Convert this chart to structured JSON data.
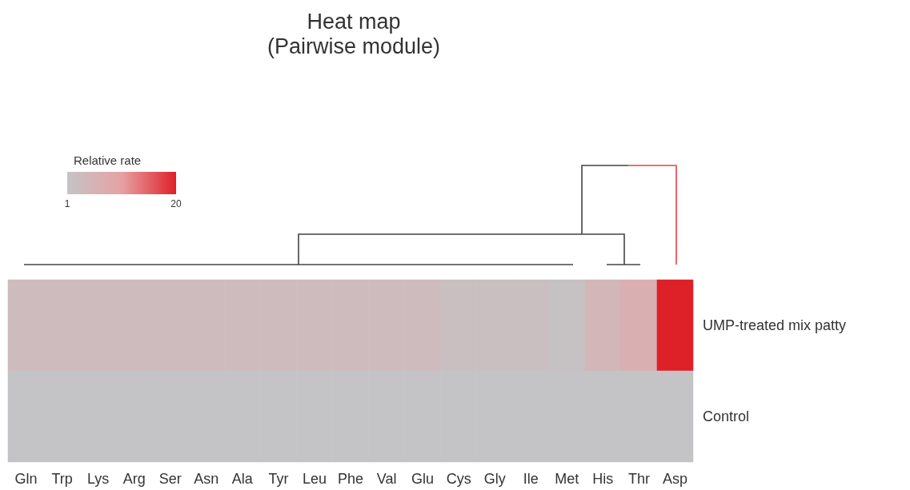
{
  "chart_data": {
    "type": "heatmap",
    "title": "Heat map",
    "subtitle": "(Pairwise module)",
    "clabel": "Relative rate",
    "categories": [
      "Gln",
      "Trp",
      "Lys",
      "Arg",
      "Ser",
      "Asn",
      "Ala",
      "Tyr",
      "Leu",
      "Phe",
      "Val",
      "Glu",
      "Cys",
      "Gly",
      "Ile",
      "Met",
      "His",
      "Thr",
      "Asp"
    ],
    "y_categories": [
      "UMP-treated mix patty",
      "Control"
    ],
    "cells": [
      [
        3.5,
        3.5,
        3.5,
        3.5,
        3.5,
        3.5,
        3.5,
        3.5,
        3.5,
        3.5,
        3.5,
        3.5,
        2.5,
        2.5,
        2.5,
        1.5,
        5,
        7,
        20
      ],
      [
        1,
        1,
        1,
        1,
        1,
        1,
        1,
        1,
        1,
        1,
        1,
        1,
        1,
        1,
        1,
        1,
        1,
        1,
        1
      ]
    ],
    "clim": [
      1,
      20
    ],
    "cticks": [
      1,
      20
    ]
  }
}
